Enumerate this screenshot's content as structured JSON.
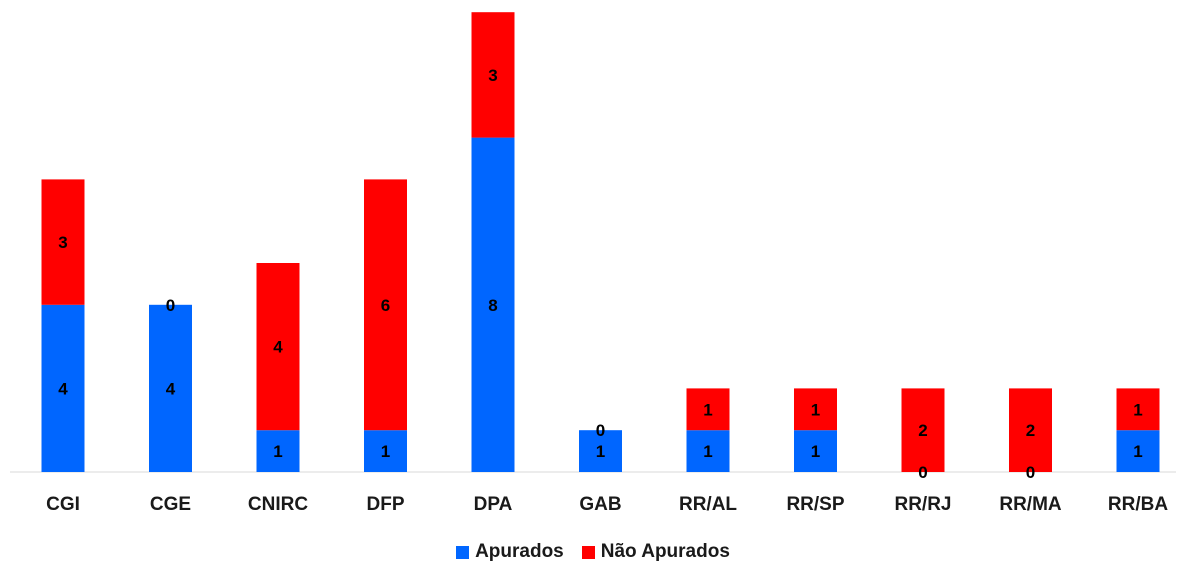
{
  "chart_data": {
    "type": "bar",
    "stacked": true,
    "categories": [
      "CGI",
      "CGE",
      "CNIRC",
      "DFP",
      "DPA",
      "GAB",
      "RR/AL",
      "RR/SP",
      "RR/RJ",
      "RR/MA",
      "RR/BA"
    ],
    "series": [
      {
        "name": "Apurados",
        "color": "#0066ff",
        "values": [
          4,
          4,
          1,
          1,
          8,
          1,
          1,
          1,
          0,
          0,
          1
        ]
      },
      {
        "name": "Não Apurados",
        "color": "#ff0000",
        "values": [
          3,
          0,
          4,
          6,
          3,
          0,
          1,
          1,
          2,
          2,
          1
        ]
      }
    ],
    "ylim": [
      0,
      11
    ],
    "grid": false,
    "legend_position": "bottom",
    "title": "",
    "xlabel": "",
    "ylabel": ""
  }
}
